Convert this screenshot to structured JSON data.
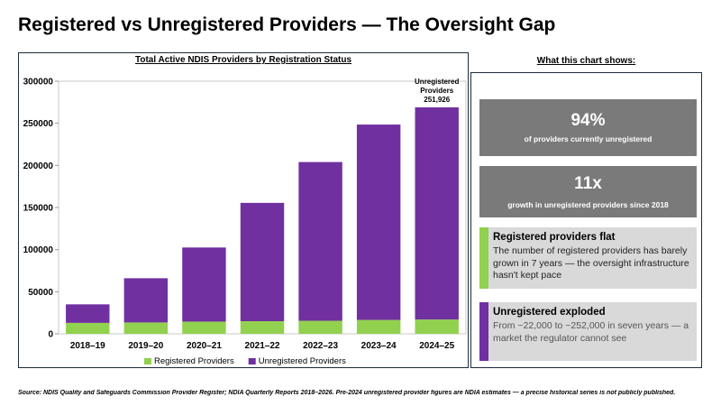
{
  "page": {
    "title": "Registered vs Unregistered Providers — The Oversight Gap",
    "source": "Source: NDIS Quality and Safeguards Commission Provider Register; NDIA Quarterly Reports 2018–2026. Pre-2024 unregistered provider figures are NDIA estimates — a precise historical series is not publicly published."
  },
  "chart_data": {
    "type": "bar",
    "stacked": true,
    "title": "Total Active NDIS Providers by Registration Status",
    "xlabel": "",
    "ylabel": "",
    "categories": [
      "2018–19",
      "2019–20",
      "2020–21",
      "2021–22",
      "2022–23",
      "2023–24",
      "2024–25"
    ],
    "series": [
      {
        "name": "Registered Providers",
        "color": "#92d050",
        "values": [
          13000,
          13500,
          14500,
          15000,
          15500,
          16500,
          17000
        ]
      },
      {
        "name": "Unregistered Providers",
        "color": "#7030a0",
        "values": [
          22000,
          52500,
          88000,
          140500,
          188500,
          232000,
          251926
        ]
      }
    ],
    "ylim": [
      0,
      300000
    ],
    "yticks": [
      "0",
      "50000",
      "100000",
      "150000",
      "200000",
      "250000",
      "300000"
    ],
    "grid": false,
    "legend_position": "bottom",
    "annotation": {
      "category": "2024–25",
      "lines": [
        "Unregistered",
        "Providers",
        "251,926"
      ]
    }
  },
  "sidebar": {
    "heading": "What this chart shows:",
    "stat1": {
      "value": "94%",
      "label": "of providers currently unregistered"
    },
    "stat2": {
      "value": "11x",
      "label": "growth in unregistered providers since 2018"
    },
    "note1": {
      "title": "Registered providers flat",
      "body": "The number of registered providers has barely grown in 7 years — the oversight infrastructure hasn't kept pace",
      "accent": "#92d050"
    },
    "note2": {
      "title": "Unregistered exploded",
      "body": "From ~22,000 to ~252,000 in seven years — a market the regulator cannot see",
      "accent": "#7030a0"
    }
  }
}
